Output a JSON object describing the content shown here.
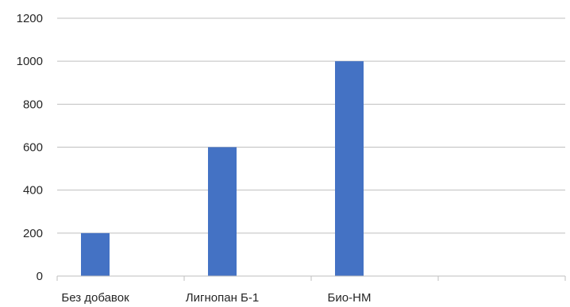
{
  "chart_data": {
    "type": "bar",
    "title": "",
    "xlabel": "",
    "ylabel": "",
    "categories": [
      "Без добавок",
      "Лигнопан Б-1",
      "Био-НМ",
      ""
    ],
    "values": [
      200,
      600,
      1000,
      null
    ],
    "ylim": [
      0,
      1200
    ],
    "yticks": [
      0,
      200,
      400,
      600,
      800,
      1000,
      1200
    ],
    "grid": true,
    "legend": "none",
    "colors": {
      "bar": "#4472c4",
      "grid": "#bfbfbf",
      "axis": "#bfbfbf",
      "text": "#262626"
    }
  }
}
